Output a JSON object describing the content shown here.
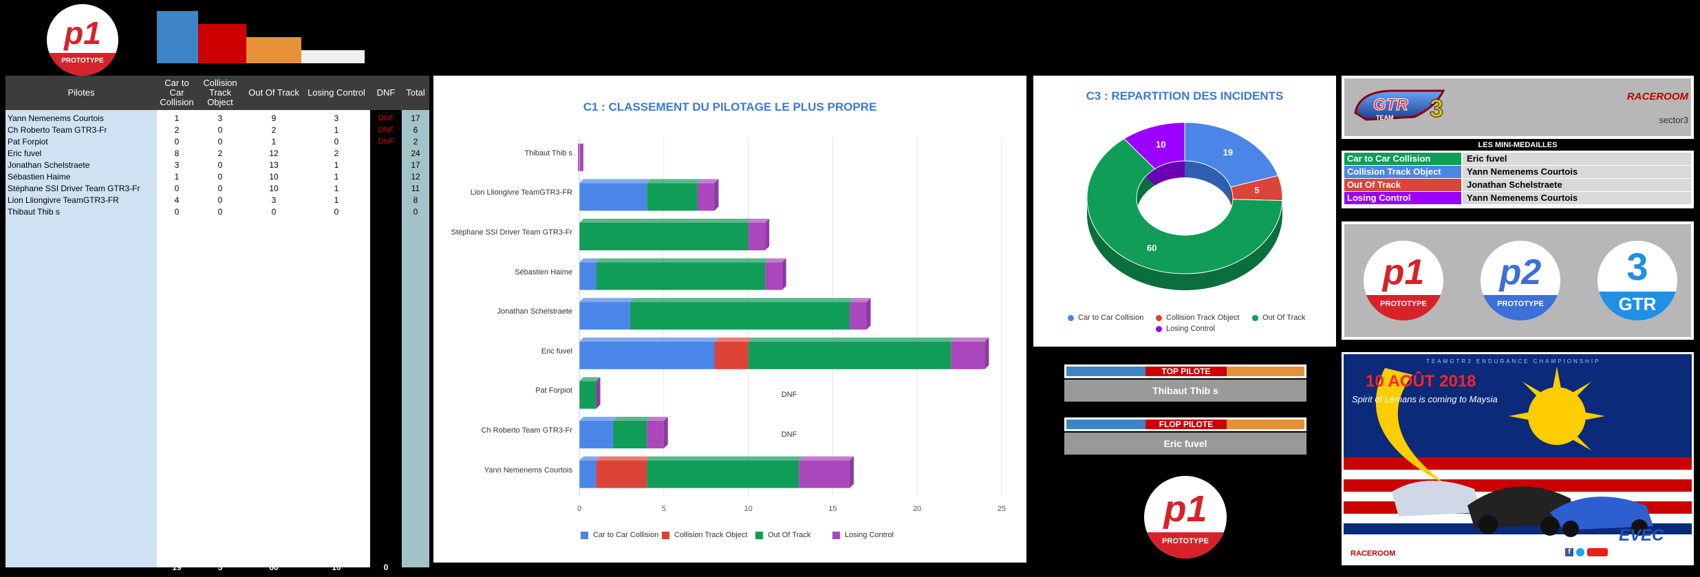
{
  "table": {
    "headers": {
      "pilotes": "Pilotes",
      "car": "Car to Car Collision",
      "collision": "Collision Track Object",
      "out": "Out Of Track",
      "losing": "Losing Control",
      "dnf": "DNF",
      "total": "Total"
    },
    "rows": [
      {
        "name": "Yann Nemenems Courtois",
        "car": "1",
        "collision": "3",
        "out": "9",
        "losing": "3",
        "dnf": "DNF",
        "total": "17"
      },
      {
        "name": "Ch Roberto Team GTR3-Fr",
        "car": "2",
        "collision": "0",
        "out": "2",
        "losing": "1",
        "dnf": "DNF",
        "total": "6"
      },
      {
        "name": "Pat Forpiot",
        "car": "0",
        "collision": "0",
        "out": "1",
        "losing": "0",
        "dnf": "DNF",
        "total": "2"
      },
      {
        "name": "Eric fuvel",
        "car": "8",
        "collision": "2",
        "out": "12",
        "losing": "2",
        "dnf": "",
        "total": "24"
      },
      {
        "name": "Jonathan Schelstraete",
        "car": "3",
        "collision": "0",
        "out": "13",
        "losing": "1",
        "dnf": "",
        "total": "17"
      },
      {
        "name": "Sébastien Haime",
        "car": "1",
        "collision": "0",
        "out": "10",
        "losing": "1",
        "dnf": "",
        "total": "12"
      },
      {
        "name": "Stéphane SSI Driver Team GTR3-Fr",
        "car": "0",
        "collision": "0",
        "out": "10",
        "losing": "1",
        "dnf": "",
        "total": "11"
      },
      {
        "name": "Lion Lliongivre TeamGTR3-FR",
        "car": "4",
        "collision": "0",
        "out": "3",
        "losing": "1",
        "dnf": "",
        "total": "8"
      },
      {
        "name": "Thibaut Thib s",
        "car": "0",
        "collision": "0",
        "out": "0",
        "losing": "0",
        "dnf": "",
        "total": "0"
      }
    ],
    "totals": {
      "car": "19",
      "collision": "5",
      "out": "60",
      "losing": "10",
      "dnf": "0"
    }
  },
  "logos": {
    "p1_letter": "p1",
    "p2_letter": "p2",
    "gtr_number": "3",
    "prototype": "PROTOTYPE",
    "gtr": "GTR"
  },
  "colors": {
    "car": "#4a86e8",
    "collision": "#db4437",
    "out": "#0f9d58",
    "losing": "#ab47bc",
    "topbar_blue": "#3d85c6",
    "topbar_red": "#cc0000",
    "topbar_orange": "#e69138",
    "topbar_white": "#efefef"
  },
  "chart_data": [
    {
      "type": "bar",
      "orientation": "horizontal",
      "stacked": true,
      "title": "C1 : CLASSEMENT DU PILOTAGE LE PLUS PROPRE",
      "categories": [
        "Thibaut Thib s",
        "Lion Lliongivre TeamGTR3-FR",
        "Stéphane SSI Driver Team GTR3-Fr",
        "Sébastien Haime",
        "Jonathan Schelstraete",
        "Eric fuvel",
        "Pat Forpiot",
        "Ch Roberto Team GTR3-Fr",
        "Yann Nemenems Courtois"
      ],
      "series": [
        {
          "name": "Car to Car Collision",
          "values": [
            0,
            4,
            0,
            1,
            3,
            8,
            0,
            2,
            1
          ]
        },
        {
          "name": "Collision Track Object",
          "values": [
            0,
            0,
            0,
            0,
            0,
            2,
            0,
            0,
            3
          ]
        },
        {
          "name": "Out Of Track",
          "values": [
            0,
            3,
            10,
            10,
            13,
            12,
            1,
            2,
            9
          ]
        },
        {
          "name": "Losing Control",
          "values": [
            0,
            1,
            1,
            1,
            1,
            2,
            0,
            1,
            3
          ]
        }
      ],
      "annotations": [
        "",
        "",
        "",
        "",
        "",
        "",
        "DNF",
        "DNF",
        "DNF"
      ],
      "xlim": [
        0,
        25
      ],
      "xticks": [
        "0",
        "5",
        "10",
        "15",
        "20",
        "25"
      ],
      "grid": true,
      "legend": "bottom"
    },
    {
      "type": "pie",
      "donut": true,
      "title": "C3 : REPARTITION DES INCIDENTS",
      "labels": [
        "Car to Car Collision",
        "Collision Track Object",
        "Out Of Track",
        "Losing Control"
      ],
      "values": [
        19,
        5,
        60,
        10
      ],
      "legend": "bottom"
    }
  ],
  "medals": {
    "title": "LES MINI-MEDAILLES",
    "rows": [
      {
        "label": "Car to Car Collision",
        "value": "Eric fuvel"
      },
      {
        "label": "Collision Track Object",
        "value": "Yann Nemenems Courtois"
      },
      {
        "label": "Out Of Track",
        "value": "Jonathan Schelstraete"
      },
      {
        "label": "Losing Control",
        "value": "Yann Nemenems Courtois"
      }
    ]
  },
  "top_pilote": {
    "label": "TOP PILOTE",
    "value": "Thibaut Thib s"
  },
  "flop_pilote": {
    "label": "FLOP PILOTE",
    "value": "Eric fuvel"
  },
  "banner": {
    "team_text": "TEAM",
    "raceroom": "RACEROOM",
    "sector": "sector3",
    "date": "10 AOÛT 2018",
    "tagline": "Spirit of Lemans is coming to Maysia",
    "header_text": "TEAMGTR3 ENDURANCE CHAMPIONSHIP",
    "evec": "EVEC"
  }
}
